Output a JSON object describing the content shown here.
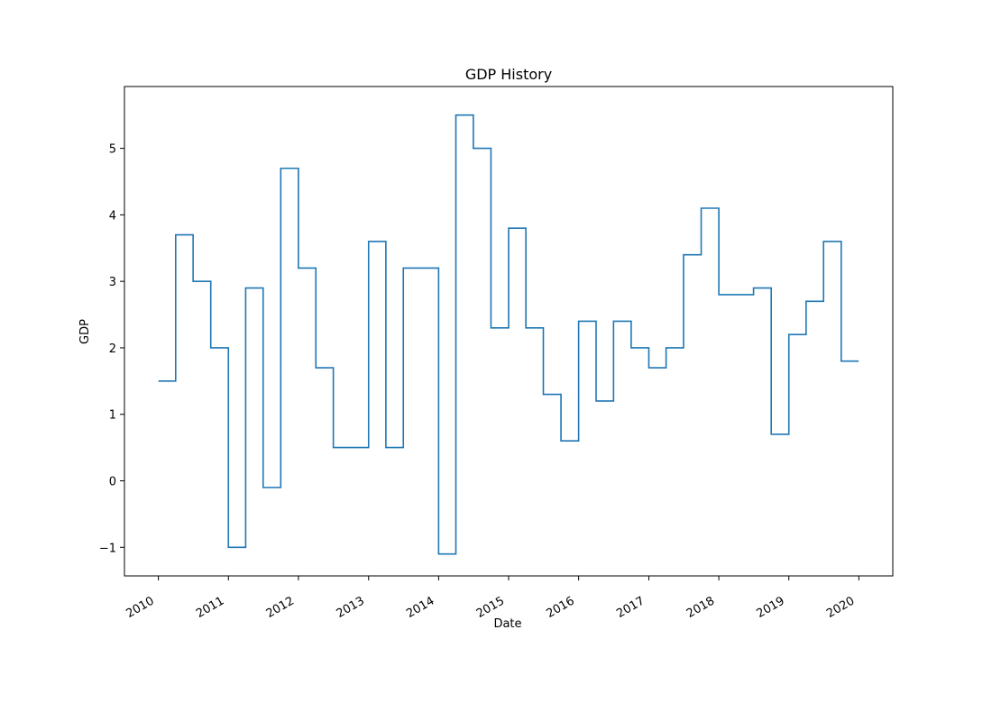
{
  "chart_data": {
    "type": "line",
    "drawstyle": "steps-post",
    "title": "GDP History",
    "xlabel": "Date",
    "ylabel": "GDP",
    "x_tick_labels": [
      "2010",
      "2011",
      "2012",
      "2013",
      "2014",
      "2015",
      "2016",
      "2017",
      "2018",
      "2019",
      "2020"
    ],
    "y_tick_labels": [
      "−1",
      "0",
      "1",
      "2",
      "3",
      "4",
      "5"
    ],
    "xlim": [
      "2009-07-08",
      "2020-06-26"
    ],
    "ylim": [
      -1.43,
      5.93
    ],
    "grid": false,
    "line_color": "#1f77b4",
    "series": [
      {
        "x": [
          "2010-01-01",
          "2010-04-01",
          "2010-07-01",
          "2010-10-01",
          "2011-01-01",
          "2011-04-01",
          "2011-07-01",
          "2011-10-01",
          "2012-01-01",
          "2012-04-01",
          "2012-07-01",
          "2012-10-01",
          "2013-01-01",
          "2013-04-01",
          "2013-07-01",
          "2013-10-01",
          "2014-01-01",
          "2014-04-01",
          "2014-07-01",
          "2014-10-01",
          "2015-01-01",
          "2015-04-01",
          "2015-07-01",
          "2015-10-01",
          "2016-01-01",
          "2016-04-01",
          "2016-07-01",
          "2016-10-01",
          "2017-01-01",
          "2017-04-01",
          "2017-07-01",
          "2017-10-01",
          "2018-01-01",
          "2018-04-01",
          "2018-07-01",
          "2018-10-01",
          "2019-01-01",
          "2019-04-01",
          "2019-07-01",
          "2019-10-01",
          "2019-12-31"
        ],
        "values": [
          1.5,
          3.7,
          3.0,
          2.0,
          -1.0,
          2.9,
          -0.1,
          4.7,
          3.2,
          1.7,
          0.5,
          0.5,
          3.6,
          0.5,
          3.2,
          3.2,
          -1.1,
          5.5,
          5.0,
          2.3,
          3.8,
          2.3,
          1.3,
          0.6,
          2.4,
          1.2,
          2.4,
          2.0,
          1.7,
          2.0,
          3.4,
          4.1,
          2.8,
          2.8,
          2.9,
          0.7,
          2.2,
          2.7,
          3.6,
          1.8,
          1.8
        ]
      }
    ]
  }
}
